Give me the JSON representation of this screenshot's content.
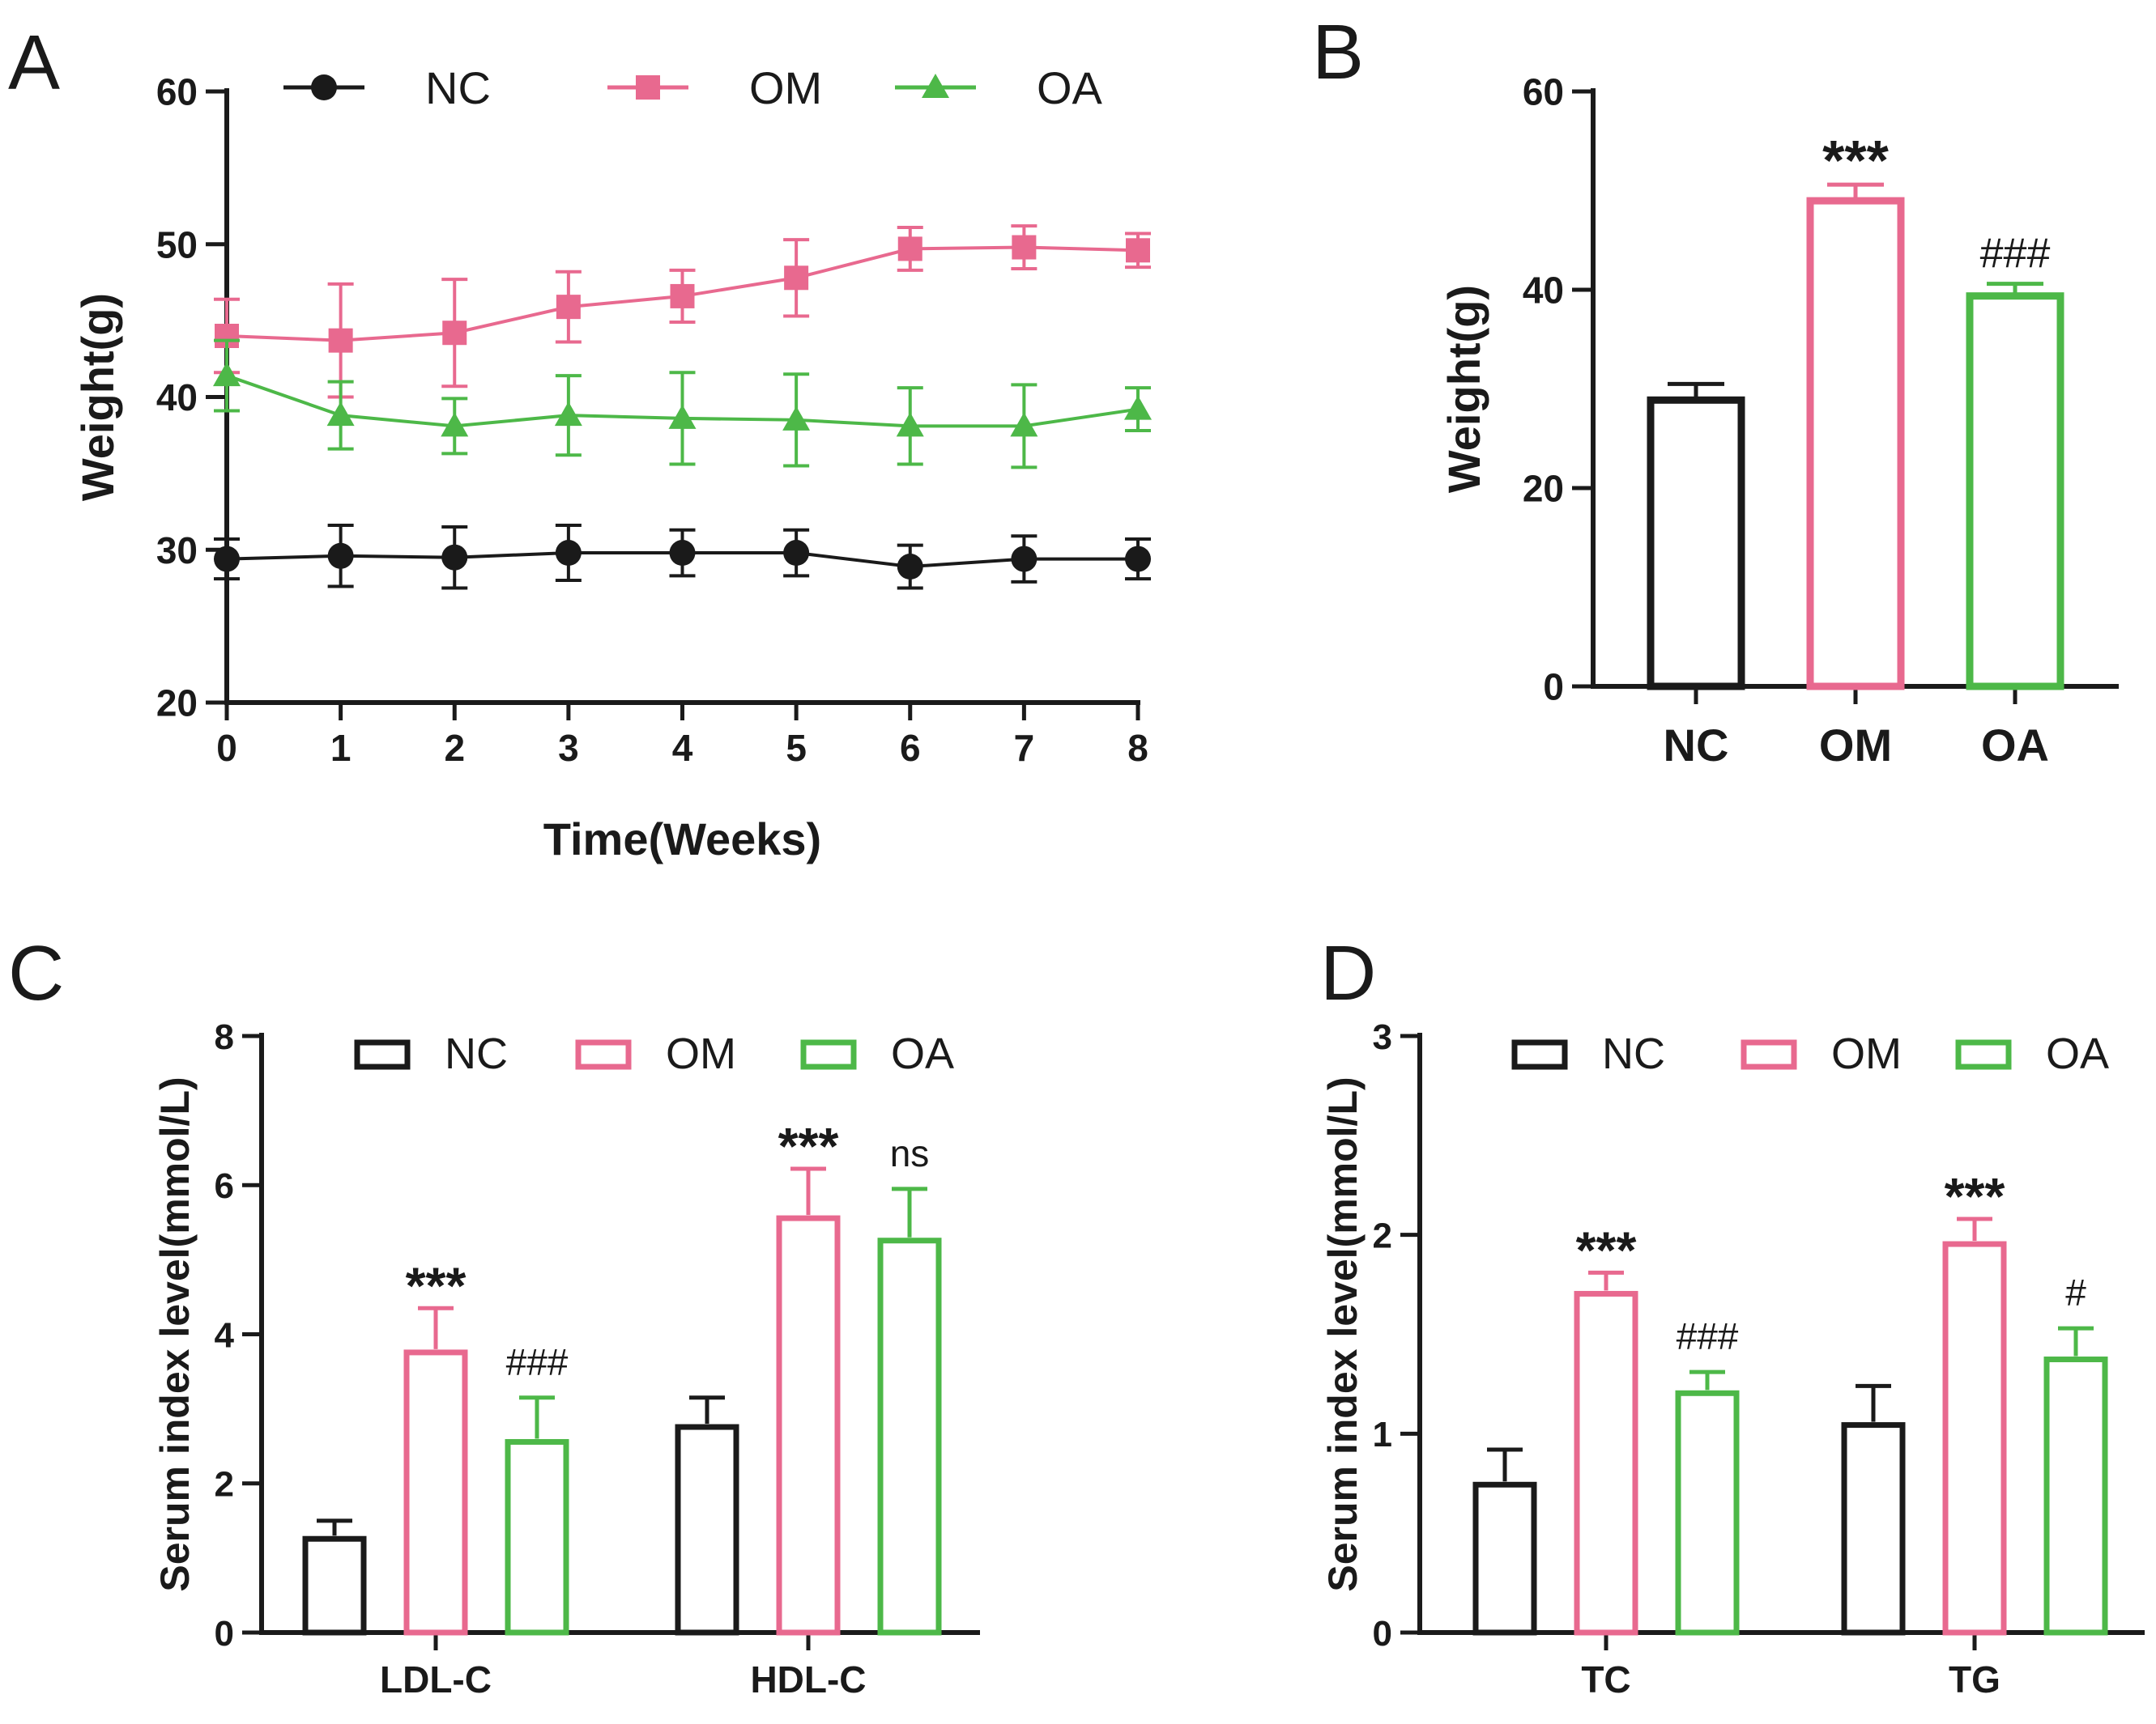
{
  "colors": {
    "nc": "#1a1a1a",
    "om": "#e8698f",
    "oa": "#4db848",
    "axis": "#1a1a1a"
  },
  "chart_data": [
    {
      "panel": "A",
      "type": "line",
      "xlabel": "Time(Weeks)",
      "ylabel": "Weight(g)",
      "ylim": [
        20,
        60
      ],
      "yticks": [
        20,
        30,
        40,
        50,
        60
      ],
      "x": [
        0,
        1,
        2,
        3,
        4,
        5,
        6,
        7,
        8
      ],
      "legend_position": "top",
      "series": [
        {
          "name": "NC",
          "marker": "circle",
          "color_key": "nc",
          "values": [
            29.4,
            29.6,
            29.5,
            29.8,
            29.8,
            29.8,
            28.9,
            29.4,
            29.4
          ],
          "errors": [
            1.3,
            2.0,
            2.0,
            1.8,
            1.5,
            1.5,
            1.4,
            1.5,
            1.3
          ]
        },
        {
          "name": "OM",
          "marker": "square",
          "color_key": "om",
          "values": [
            44.0,
            43.7,
            44.2,
            45.9,
            46.6,
            47.8,
            49.7,
            49.8,
            49.6
          ],
          "errors": [
            2.4,
            3.7,
            3.5,
            2.3,
            1.7,
            2.5,
            1.4,
            1.4,
            1.1
          ]
        },
        {
          "name": "OA",
          "marker": "triangle",
          "color_key": "oa",
          "values": [
            41.4,
            38.8,
            38.1,
            38.8,
            38.6,
            38.5,
            38.1,
            38.1,
            39.2
          ],
          "errors": [
            2.3,
            2.2,
            1.8,
            2.6,
            3.0,
            3.0,
            2.5,
            2.7,
            1.4
          ]
        }
      ]
    },
    {
      "panel": "B",
      "type": "bar",
      "ylabel": "Weight(g)",
      "ylim": [
        0,
        60
      ],
      "yticks": [
        0,
        20,
        40,
        60
      ],
      "categories": [
        "NC",
        "OM",
        "OA"
      ],
      "values": [
        29.2,
        49.3,
        39.7
      ],
      "errors": [
        1.3,
        1.3,
        0.9
      ],
      "annotations": [
        "",
        "***",
        "###"
      ]
    },
    {
      "panel": "C",
      "type": "bar",
      "ylabel": "Serum index level(mmol/L)",
      "ylim": [
        0,
        8
      ],
      "yticks": [
        0,
        2,
        4,
        6,
        8
      ],
      "categories": [
        "LDL-C",
        "HDL-C"
      ],
      "legend_position": "top",
      "series": [
        {
          "name": "NC",
          "color_key": "nc",
          "values": [
            1.3,
            2.8
          ],
          "errors": [
            0.2,
            0.35
          ],
          "annotations": [
            "",
            ""
          ]
        },
        {
          "name": "OM",
          "color_key": "om",
          "values": [
            3.8,
            5.6
          ],
          "errors": [
            0.55,
            0.62
          ],
          "annotations": [
            "***",
            "***"
          ]
        },
        {
          "name": "OA",
          "color_key": "oa",
          "values": [
            2.6,
            5.3
          ],
          "errors": [
            0.55,
            0.65
          ],
          "annotations": [
            "###",
            "ns"
          ]
        }
      ]
    },
    {
      "panel": "D",
      "type": "bar",
      "ylabel": "Serum index level(mmol/L)",
      "ylim": [
        0,
        3
      ],
      "yticks": [
        0,
        1,
        2,
        3
      ],
      "categories": [
        "TC",
        "TG"
      ],
      "legend_position": "top",
      "series": [
        {
          "name": "NC",
          "color_key": "nc",
          "values": [
            0.76,
            1.06
          ],
          "errors": [
            0.16,
            0.18
          ],
          "annotations": [
            "",
            ""
          ]
        },
        {
          "name": "OM",
          "color_key": "om",
          "values": [
            1.72,
            1.97
          ],
          "errors": [
            0.09,
            0.11
          ],
          "annotations": [
            "***",
            "***"
          ]
        },
        {
          "name": "OA",
          "color_key": "oa",
          "values": [
            1.22,
            1.39
          ],
          "errors": [
            0.09,
            0.14
          ],
          "annotations": [
            "###",
            "#"
          ]
        }
      ]
    }
  ]
}
